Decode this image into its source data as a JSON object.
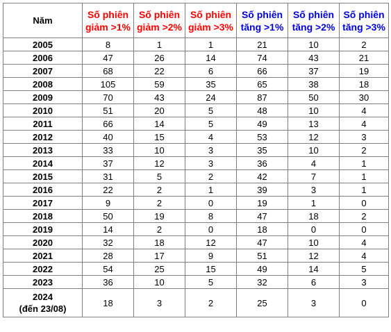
{
  "headers": {
    "year": "Năm",
    "col1": [
      "Số phiên",
      "giảm >1%"
    ],
    "col2": [
      "Số phiên",
      "giảm >2%"
    ],
    "col3": [
      "Số phiên",
      "giảm >3%"
    ],
    "col4": [
      "Số phiên",
      "tăng >1%"
    ],
    "col5": [
      "Số phiên",
      "tăng >2%"
    ],
    "col6": [
      "Số phiên",
      "tăng >3%"
    ]
  },
  "colors": {
    "down_header": "#ff0000",
    "up_header": "#0000e0",
    "border": "#7f7f7f"
  },
  "rows": [
    {
      "year": "2005",
      "d1": "8",
      "d2": "1",
      "d3": "1",
      "u1": "21",
      "u2": "10",
      "u3": "2"
    },
    {
      "year": "2006",
      "d1": "47",
      "d2": "26",
      "d3": "14",
      "u1": "74",
      "u2": "43",
      "u3": "21"
    },
    {
      "year": "2007",
      "d1": "68",
      "d2": "22",
      "d3": "6",
      "u1": "66",
      "u2": "37",
      "u3": "19"
    },
    {
      "year": "2008",
      "d1": "105",
      "d2": "59",
      "d3": "35",
      "u1": "65",
      "u2": "38",
      "u3": "18"
    },
    {
      "year": "2009",
      "d1": "70",
      "d2": "43",
      "d3": "24",
      "u1": "87",
      "u2": "50",
      "u3": "30"
    },
    {
      "year": "2010",
      "d1": "51",
      "d2": "20",
      "d3": "5",
      "u1": "48",
      "u2": "10",
      "u3": "4"
    },
    {
      "year": "2011",
      "d1": "66",
      "d2": "14",
      "d3": "5",
      "u1": "49",
      "u2": "13",
      "u3": "4"
    },
    {
      "year": "2012",
      "d1": "40",
      "d2": "15",
      "d3": "4",
      "u1": "53",
      "u2": "12",
      "u3": "3"
    },
    {
      "year": "2013",
      "d1": "33",
      "d2": "10",
      "d3": "3",
      "u1": "35",
      "u2": "10",
      "u3": "2"
    },
    {
      "year": "2014",
      "d1": "37",
      "d2": "12",
      "d3": "3",
      "u1": "36",
      "u2": "4",
      "u3": "1"
    },
    {
      "year": "2015",
      "d1": "31",
      "d2": "5",
      "d3": "2",
      "u1": "42",
      "u2": "7",
      "u3": "1"
    },
    {
      "year": "2016",
      "d1": "22",
      "d2": "2",
      "d3": "1",
      "u1": "39",
      "u2": "3",
      "u3": "1"
    },
    {
      "year": "2017",
      "d1": "9",
      "d2": "2",
      "d3": "0",
      "u1": "19",
      "u2": "1",
      "u3": "0"
    },
    {
      "year": "2018",
      "d1": "50",
      "d2": "19",
      "d3": "8",
      "u1": "47",
      "u2": "18",
      "u3": "2"
    },
    {
      "year": "2019",
      "d1": "14",
      "d2": "2",
      "d3": "0",
      "u1": "18",
      "u2": "0",
      "u3": "0"
    },
    {
      "year": "2020",
      "d1": "32",
      "d2": "18",
      "d3": "12",
      "u1": "47",
      "u2": "10",
      "u3": "4"
    },
    {
      "year": "2021",
      "d1": "28",
      "d2": "17",
      "d3": "9",
      "u1": "51",
      "u2": "12",
      "u3": "4"
    },
    {
      "year": "2022",
      "d1": "54",
      "d2": "25",
      "d3": "15",
      "u1": "49",
      "u2": "14",
      "u3": "5"
    },
    {
      "year": "2023",
      "d1": "36",
      "d2": "10",
      "d3": "5",
      "u1": "32",
      "u2": "6",
      "u3": "3"
    }
  ],
  "last_row": {
    "year_line1": "2024",
    "year_line2": "(đến 23/08)",
    "d1": "18",
    "d2": "3",
    "d3": "2",
    "u1": "25",
    "u2": "3",
    "u3": "0"
  }
}
